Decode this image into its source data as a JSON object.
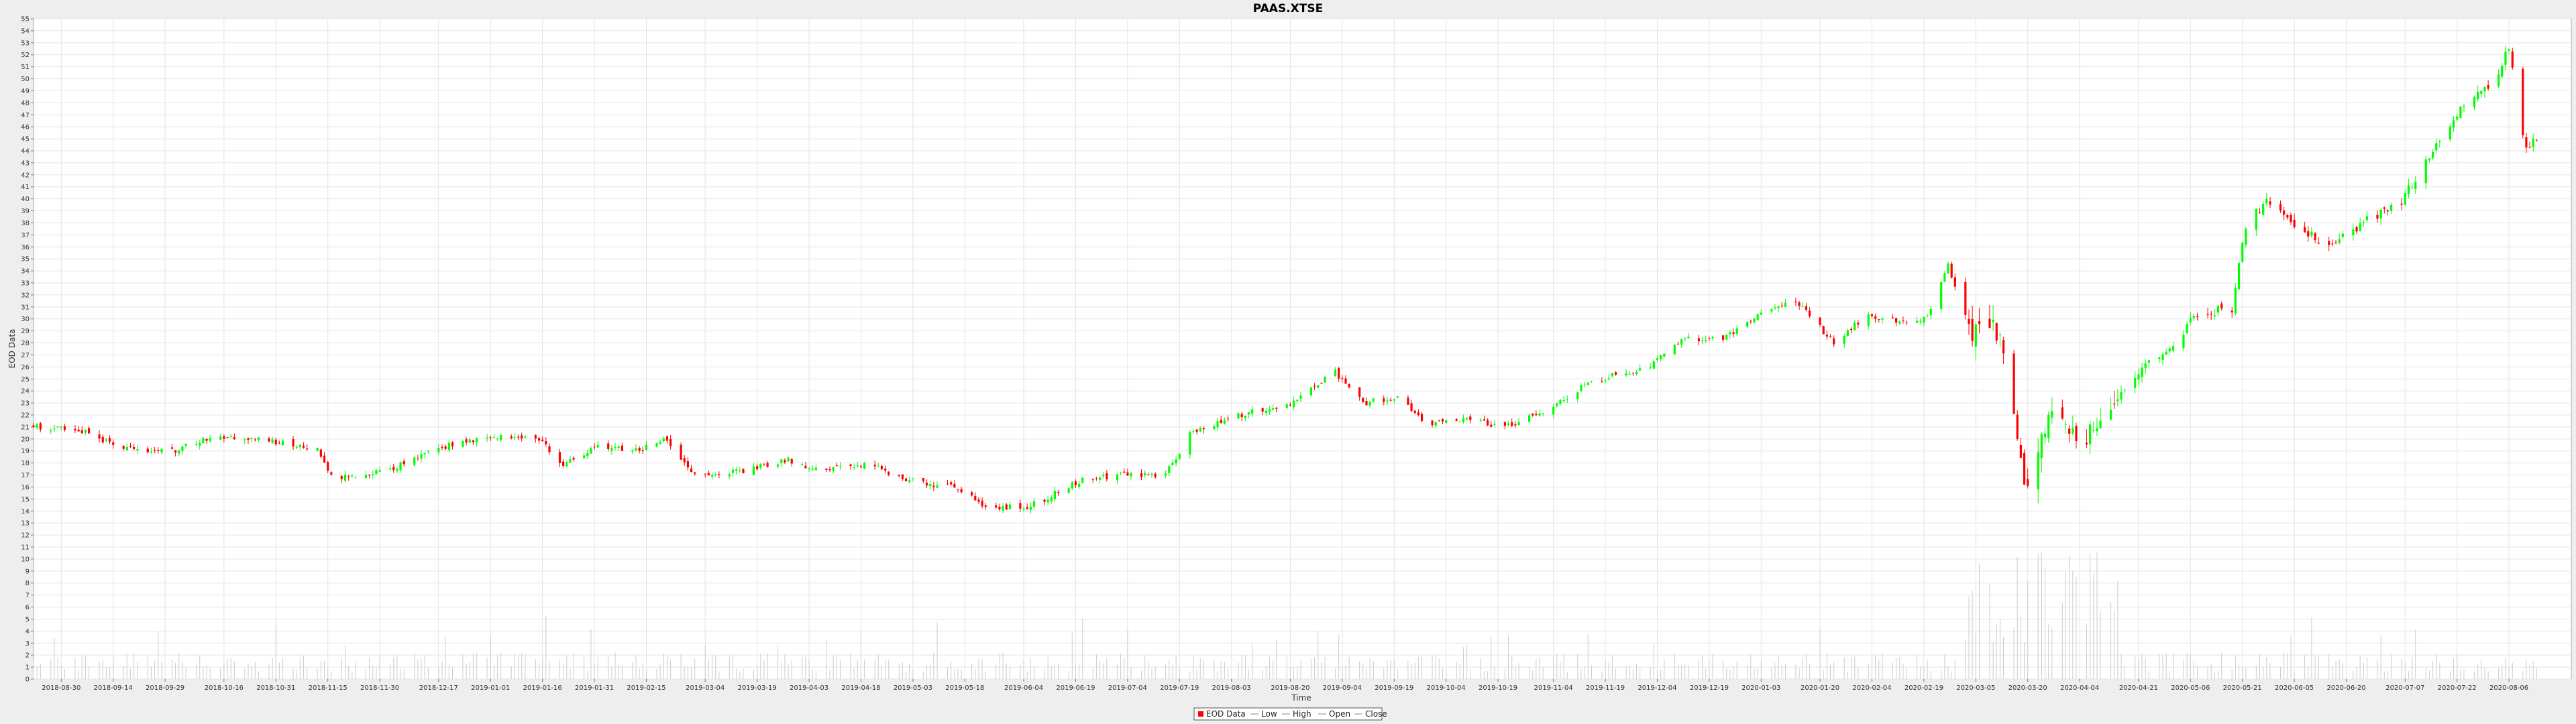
{
  "chart_data": {
    "type": "candlestick",
    "title": "PAAS.XTSE",
    "xlabel": "Time",
    "ylabel": "EOD Data",
    "ylim": [
      0,
      55
    ],
    "y_ticks": [
      0,
      1,
      2,
      3,
      4,
      5,
      6,
      7,
      8,
      9,
      10,
      11,
      12,
      13,
      14,
      15,
      16,
      17,
      18,
      19,
      20,
      21,
      22,
      23,
      24,
      25,
      26,
      27,
      28,
      29,
      30,
      31,
      32,
      33,
      34,
      35,
      36,
      37,
      38,
      39,
      40,
      41,
      42,
      43,
      44,
      45,
      46,
      47,
      48,
      49,
      50,
      51,
      52,
      53,
      54,
      55
    ],
    "x_range": [
      "2018-08-22",
      "2020-08-24"
    ],
    "x_ticks": [
      "2018-08-30",
      "2018-09-14",
      "2018-09-29",
      "2018-10-16",
      "2018-10-31",
      "2018-11-15",
      "2018-11-30",
      "2018-12-17",
      "2019-01-01",
      "2019-01-16",
      "2019-01-31",
      "2019-02-15",
      "2019-03-04",
      "2019-03-19",
      "2019-04-03",
      "2019-04-18",
      "2019-05-03",
      "2019-05-18",
      "2019-06-04",
      "2019-06-19",
      "2019-07-04",
      "2019-07-19",
      "2019-08-03",
      "2019-08-20",
      "2019-09-04",
      "2019-09-19",
      "2019-10-04",
      "2019-10-19",
      "2019-11-04",
      "2019-11-19",
      "2019-12-04",
      "2019-12-19",
      "2020-01-03",
      "2020-01-20",
      "2020-02-04",
      "2020-02-19",
      "2020-03-05",
      "2020-03-20",
      "2020-04-04",
      "2020-04-21",
      "2020-05-06",
      "2020-05-21",
      "2020-06-05",
      "2020-06-20",
      "2020-07-07",
      "2020-07-22",
      "2020-08-06"
    ],
    "close_path": [
      [
        "2018-08-22",
        21.0
      ],
      [
        "2018-09-05",
        20.7
      ],
      [
        "2018-09-15",
        19.3
      ],
      [
        "2018-10-01",
        19.0
      ],
      [
        "2018-10-12",
        20.2
      ],
      [
        "2018-10-30",
        19.8
      ],
      [
        "2018-11-12",
        19.2
      ],
      [
        "2018-11-16",
        16.8
      ],
      [
        "2018-12-01",
        17.3
      ],
      [
        "2018-12-20",
        19.5
      ],
      [
        "2019-01-02",
        20.2
      ],
      [
        "2019-01-16",
        19.8
      ],
      [
        "2019-01-22",
        17.8
      ],
      [
        "2019-02-01",
        19.5
      ],
      [
        "2019-02-13",
        19.0
      ],
      [
        "2019-02-20",
        20.0
      ],
      [
        "2019-03-01",
        17.0
      ],
      [
        "2019-03-15",
        17.3
      ],
      [
        "2019-03-28",
        18.3
      ],
      [
        "2019-04-05",
        17.4
      ],
      [
        "2019-04-20",
        17.8
      ],
      [
        "2019-05-03",
        16.5
      ],
      [
        "2019-05-14",
        16.0
      ],
      [
        "2019-05-25",
        14.3
      ],
      [
        "2019-06-06",
        14.4
      ],
      [
        "2019-06-20",
        16.5
      ],
      [
        "2019-07-01",
        17.0
      ],
      [
        "2019-07-15",
        17.0
      ],
      [
        "2019-07-22",
        20.5
      ],
      [
        "2019-08-05",
        22.0
      ],
      [
        "2019-08-19",
        22.8
      ],
      [
        "2019-09-02",
        25.6
      ],
      [
        "2019-09-10",
        23.0
      ],
      [
        "2019-09-20",
        23.5
      ],
      [
        "2019-09-28",
        21.2
      ],
      [
        "2019-10-10",
        21.7
      ],
      [
        "2019-10-20",
        21.0
      ],
      [
        "2019-10-31",
        22.0
      ],
      [
        "2019-11-15",
        24.8
      ],
      [
        "2019-12-01",
        26.0
      ],
      [
        "2019-12-12",
        28.3
      ],
      [
        "2019-12-23",
        28.4
      ],
      [
        "2020-01-05",
        31.0
      ],
      [
        "2020-01-14",
        31.2
      ],
      [
        "2020-01-24",
        28.0
      ],
      [
        "2020-02-02",
        30.2
      ],
      [
        "2020-02-12",
        29.8
      ],
      [
        "2020-02-20",
        30.0
      ],
      [
        "2020-02-26",
        34.4
      ],
      [
        "2020-03-04",
        28.5
      ],
      [
        "2020-03-09",
        30.0
      ],
      [
        "2020-03-13",
        27.8
      ],
      [
        "2020-03-16",
        21.5
      ],
      [
        "2020-03-19",
        16.0
      ],
      [
        "2020-03-23",
        18.5
      ],
      [
        "2020-03-26",
        21.8
      ],
      [
        "2020-03-31",
        21.2
      ],
      [
        "2020-04-05",
        20.0
      ],
      [
        "2020-04-12",
        22.8
      ],
      [
        "2020-04-22",
        26.0
      ],
      [
        "2020-05-01",
        27.5
      ],
      [
        "2020-05-07",
        30.5
      ],
      [
        "2020-05-18",
        30.8
      ],
      [
        "2020-05-22",
        37.8
      ],
      [
        "2020-05-28",
        40.0
      ],
      [
        "2020-06-05",
        38.0
      ],
      [
        "2020-06-15",
        36.0
      ],
      [
        "2020-06-25",
        38.0
      ],
      [
        "2020-07-06",
        39.8
      ],
      [
        "2020-07-16",
        44.5
      ],
      [
        "2020-07-25",
        48.5
      ],
      [
        "2020-08-01",
        49.5
      ],
      [
        "2020-08-06",
        52.5
      ],
      [
        "2020-08-11",
        44.0
      ],
      [
        "2020-08-14",
        45.0
      ]
    ],
    "highlighted_low_points": [
      [
        "2020-03-19",
        14.6
      ],
      [
        "2020-03-23",
        16.2
      ]
    ],
    "volume_scale": [
      0,
      12
    ],
    "legend": [
      "EOD Data",
      "Low",
      "High",
      "Open",
      "Close"
    ],
    "legend_placement": "bottom-center",
    "grid": true,
    "colors": {
      "up": "#00ff00",
      "down": "#ff0000",
      "volume": "#cccccc",
      "grid": "#e4e4e4",
      "background": "#ffffff"
    }
  }
}
